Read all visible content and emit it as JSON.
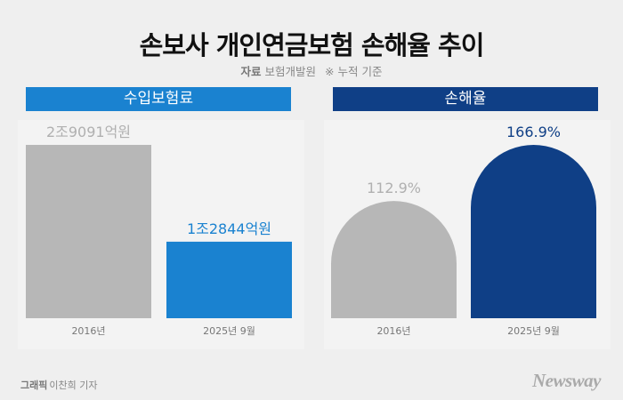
{
  "title": "손보사 개인연금보험 손해율 추이",
  "source": {
    "label": "자료",
    "org": "보험개발원",
    "note": "※ 누적 기준"
  },
  "credit": {
    "name": "그래픽",
    "author": "이찬희 기자"
  },
  "logo": "Newsway",
  "colors": {
    "gray": "#b7b7b7",
    "blue": "#1a82d0",
    "navy": "#0f3f86"
  },
  "chart_data": [
    {
      "type": "bar",
      "title": "수입보험료",
      "categories": [
        "2016년",
        "2025년 9월"
      ],
      "values": [
        29091,
        12844
      ],
      "unit": "억원",
      "data_labels": [
        "2조9091억원",
        "1조2844억원"
      ],
      "bar_colors": [
        "#b7b7b7",
        "#1a82d0"
      ],
      "ylim": [
        0,
        29091
      ]
    },
    {
      "type": "bar",
      "title": "손해율",
      "categories": [
        "2016년",
        "2025년 9월"
      ],
      "values": [
        112.9,
        166.9
      ],
      "unit": "%",
      "data_labels": [
        "112.9%",
        "166.9%"
      ],
      "bar_colors": [
        "#b7b7b7",
        "#0f3f86"
      ],
      "ylim": [
        0,
        166.9
      ]
    }
  ]
}
